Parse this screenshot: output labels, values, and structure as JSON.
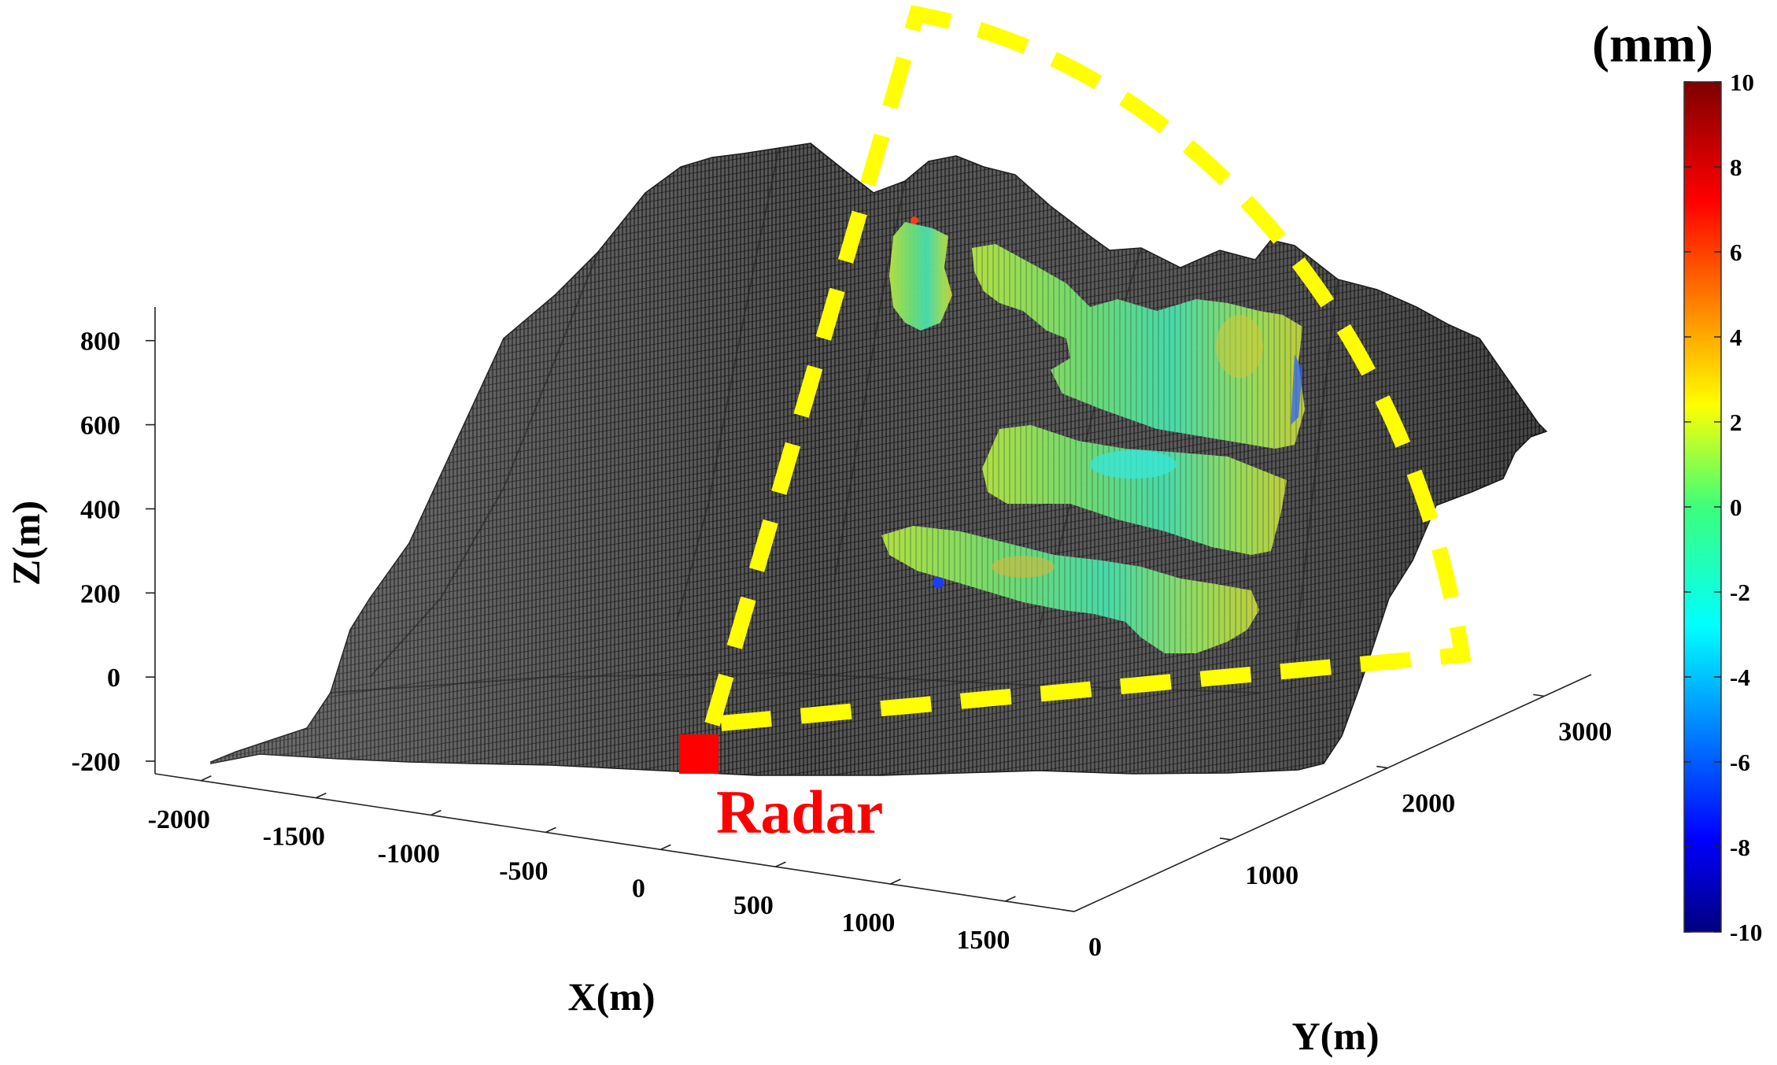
{
  "chart_data": {
    "type": "surface",
    "title": "",
    "xlabel": "X(m)",
    "ylabel": "Y(m)",
    "zlabel": "Z(m)",
    "xticks": [
      -2000,
      -1500,
      -1000,
      -500,
      0,
      500,
      1000,
      1500
    ],
    "yticks": [
      0,
      1000,
      2000,
      3000
    ],
    "zticks": [
      -200,
      0,
      200,
      400,
      600,
      800
    ],
    "xlim": [
      -2200,
      1800
    ],
    "ylim": [
      0,
      3300
    ],
    "zlim": [
      -230,
      880
    ],
    "colorbar": {
      "unit": "(mm)",
      "ticks": [
        10,
        8,
        6,
        4,
        2,
        0,
        -2,
        -4,
        -6,
        -8,
        -10
      ],
      "range": [
        -10,
        10
      ],
      "colormap": "jet"
    },
    "terrain_color": "#4a4a4a",
    "mesh_line_color": "#0a0a0a",
    "annotation": {
      "label": "Radar",
      "label_color": "#ff0000",
      "marker_color": "#ff0000",
      "sector_color": "#ffff00",
      "sector_style": "dashed"
    }
  }
}
